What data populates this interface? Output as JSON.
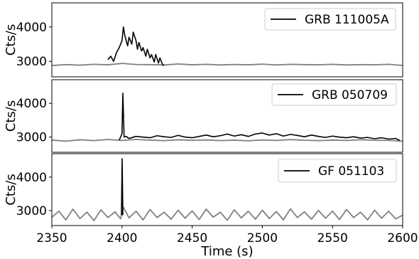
{
  "chart_data": [
    {
      "type": "line",
      "ylabel": "Cts/s",
      "xlabel": "",
      "xlim": [
        2350,
        2600
      ],
      "ylim": [
        2550,
        4700
      ],
      "yticks": [
        3000,
        4000
      ],
      "series": [
        {
          "name": "",
          "color": "#808080",
          "points": [
            [
              2350,
              2880
            ],
            [
              2360,
              2905
            ],
            [
              2370,
              2890
            ],
            [
              2380,
              2915
            ],
            [
              2390,
              2900
            ],
            [
              2400,
              2940
            ],
            [
              2410,
              2910
            ],
            [
              2420,
              2905
            ],
            [
              2430,
              2895
            ],
            [
              2440,
              2925
            ],
            [
              2450,
              2900
            ],
            [
              2460,
              2915
            ],
            [
              2470,
              2895
            ],
            [
              2480,
              2910
            ],
            [
              2490,
              2900
            ],
            [
              2500,
              2920
            ],
            [
              2510,
              2895
            ],
            [
              2520,
              2915
            ],
            [
              2530,
              2905
            ],
            [
              2540,
              2900
            ],
            [
              2550,
              2915
            ],
            [
              2560,
              2895
            ],
            [
              2570,
              2905
            ],
            [
              2580,
              2900
            ],
            [
              2590,
              2915
            ],
            [
              2600,
              2880
            ]
          ]
        },
        {
          "name": "GRB 111005A",
          "color": "#000000",
          "points": [
            [
              2390,
              3050
            ],
            [
              2392,
              3150
            ],
            [
              2394,
              3000
            ],
            [
              2396,
              3250
            ],
            [
              2398,
              3400
            ],
            [
              2400,
              3600
            ],
            [
              2401,
              4000
            ],
            [
              2402,
              3750
            ],
            [
              2404,
              3450
            ],
            [
              2405,
              3700
            ],
            [
              2407,
              3500
            ],
            [
              2408,
              3850
            ],
            [
              2410,
              3600
            ],
            [
              2411,
              3350
            ],
            [
              2412,
              3550
            ],
            [
              2414,
              3300
            ],
            [
              2415,
              3400
            ],
            [
              2417,
              3150
            ],
            [
              2418,
              3350
            ],
            [
              2420,
              3100
            ],
            [
              2421,
              3200
            ],
            [
              2423,
              2980
            ],
            [
              2424,
              3200
            ],
            [
              2426,
              2950
            ],
            [
              2427,
              3100
            ],
            [
              2429,
              2900
            ],
            [
              2430,
              2880
            ]
          ]
        }
      ],
      "legend": {
        "position": "top-right",
        "entries": [
          "GRB 111005A"
        ]
      }
    },
    {
      "type": "line",
      "ylabel": "Cts/s",
      "xlabel": "",
      "xlim": [
        2350,
        2600
      ],
      "ylim": [
        2550,
        4700
      ],
      "yticks": [
        3000,
        4000
      ],
      "series": [
        {
          "name": "",
          "color": "#808080",
          "points": [
            [
              2350,
              2910
            ],
            [
              2360,
              2880
            ],
            [
              2370,
              2920
            ],
            [
              2380,
              2895
            ],
            [
              2390,
              2930
            ],
            [
              2400,
              2900
            ],
            [
              2410,
              2930
            ],
            [
              2420,
              2910
            ],
            [
              2430,
              2895
            ],
            [
              2440,
              2920
            ],
            [
              2450,
              2905
            ],
            [
              2460,
              2915
            ],
            [
              2470,
              2895
            ],
            [
              2480,
              2910
            ],
            [
              2490,
              2890
            ],
            [
              2500,
              2915
            ],
            [
              2510,
              2900
            ],
            [
              2520,
              2925
            ],
            [
              2530,
              2905
            ],
            [
              2540,
              2895
            ],
            [
              2550,
              2910
            ],
            [
              2560,
              2900
            ],
            [
              2570,
              2920
            ],
            [
              2580,
              2905
            ],
            [
              2590,
              2900
            ],
            [
              2600,
              2880
            ]
          ]
        },
        {
          "name": "GRB 050709",
          "color": "#000000",
          "points": [
            [
              2398,
              2910
            ],
            [
              2400,
              3100
            ],
            [
              2400.6,
              4300
            ],
            [
              2401.5,
              3000
            ],
            [
              2403,
              3020
            ],
            [
              2405,
              2960
            ],
            [
              2410,
              3020
            ],
            [
              2415,
              3000
            ],
            [
              2420,
              2980
            ],
            [
              2425,
              3040
            ],
            [
              2430,
              3010
            ],
            [
              2435,
              2990
            ],
            [
              2440,
              3050
            ],
            [
              2445,
              3000
            ],
            [
              2450,
              2980
            ],
            [
              2455,
              3020
            ],
            [
              2460,
              3060
            ],
            [
              2465,
              3010
            ],
            [
              2470,
              3040
            ],
            [
              2475,
              3090
            ],
            [
              2480,
              3030
            ],
            [
              2485,
              3070
            ],
            [
              2490,
              3020
            ],
            [
              2495,
              3090
            ],
            [
              2500,
              3120
            ],
            [
              2505,
              3060
            ],
            [
              2510,
              3100
            ],
            [
              2515,
              3030
            ],
            [
              2520,
              3080
            ],
            [
              2525,
              3050
            ],
            [
              2530,
              3010
            ],
            [
              2535,
              3060
            ],
            [
              2540,
              3020
            ],
            [
              2545,
              2990
            ],
            [
              2550,
              3030
            ],
            [
              2555,
              3000
            ],
            [
              2560,
              2980
            ],
            [
              2565,
              3010
            ],
            [
              2570,
              2970
            ],
            [
              2575,
              2990
            ],
            [
              2580,
              2950
            ],
            [
              2585,
              2980
            ],
            [
              2590,
              2940
            ],
            [
              2595,
              2960
            ],
            [
              2598,
              2900
            ]
          ]
        }
      ],
      "legend": {
        "position": "top-right",
        "entries": [
          "GRB 050709"
        ]
      }
    },
    {
      "type": "line",
      "ylabel": "Cts/s",
      "xlabel": "Time (s)",
      "xlim": [
        2350,
        2600
      ],
      "ylim": [
        2550,
        4700
      ],
      "yticks": [
        3000,
        4000
      ],
      "xticks": [
        2350,
        2400,
        2450,
        2500,
        2550,
        2600
      ],
      "series": [
        {
          "name": "",
          "color": "#808080",
          "points": [
            [
              2350,
              2800
            ],
            [
              2355,
              2980
            ],
            [
              2360,
              2720
            ],
            [
              2365,
              3040
            ],
            [
              2370,
              2760
            ],
            [
              2375,
              2950
            ],
            [
              2380,
              2700
            ],
            [
              2385,
              3020
            ],
            [
              2390,
              2790
            ],
            [
              2395,
              2960
            ],
            [
              2399,
              2750
            ],
            [
              2401,
              3100
            ],
            [
              2405,
              2780
            ],
            [
              2410,
              2980
            ],
            [
              2415,
              2720
            ],
            [
              2420,
              3030
            ],
            [
              2425,
              2790
            ],
            [
              2430,
              2950
            ],
            [
              2435,
              2740
            ],
            [
              2440,
              3010
            ],
            [
              2445,
              2770
            ],
            [
              2450,
              2990
            ],
            [
              2455,
              2730
            ],
            [
              2460,
              3040
            ],
            [
              2465,
              2800
            ],
            [
              2470,
              2950
            ],
            [
              2475,
              2710
            ],
            [
              2480,
              3020
            ],
            [
              2485,
              2780
            ],
            [
              2490,
              2980
            ],
            [
              2495,
              2740
            ],
            [
              2500,
              3010
            ],
            [
              2505,
              2760
            ],
            [
              2510,
              2970
            ],
            [
              2515,
              2720
            ],
            [
              2520,
              3050
            ],
            [
              2525,
              2790
            ],
            [
              2530,
              2960
            ],
            [
              2535,
              2740
            ],
            [
              2540,
              3000
            ],
            [
              2545,
              2770
            ],
            [
              2550,
              2980
            ],
            [
              2555,
              2730
            ],
            [
              2560,
              3030
            ],
            [
              2565,
              2790
            ],
            [
              2570,
              2950
            ],
            [
              2575,
              2720
            ],
            [
              2580,
              3010
            ],
            [
              2585,
              2770
            ],
            [
              2590,
              2980
            ],
            [
              2595,
              2750
            ],
            [
              2600,
              2860
            ]
          ]
        },
        {
          "name": "GF  051103",
          "color": "#000000",
          "points": [
            [
              2399.6,
              2860
            ],
            [
              2400.1,
              4550
            ],
            [
              2400.6,
              2860
            ]
          ]
        }
      ],
      "legend": {
        "position": "top-right",
        "entries": [
          "GF  051103"
        ]
      }
    }
  ]
}
